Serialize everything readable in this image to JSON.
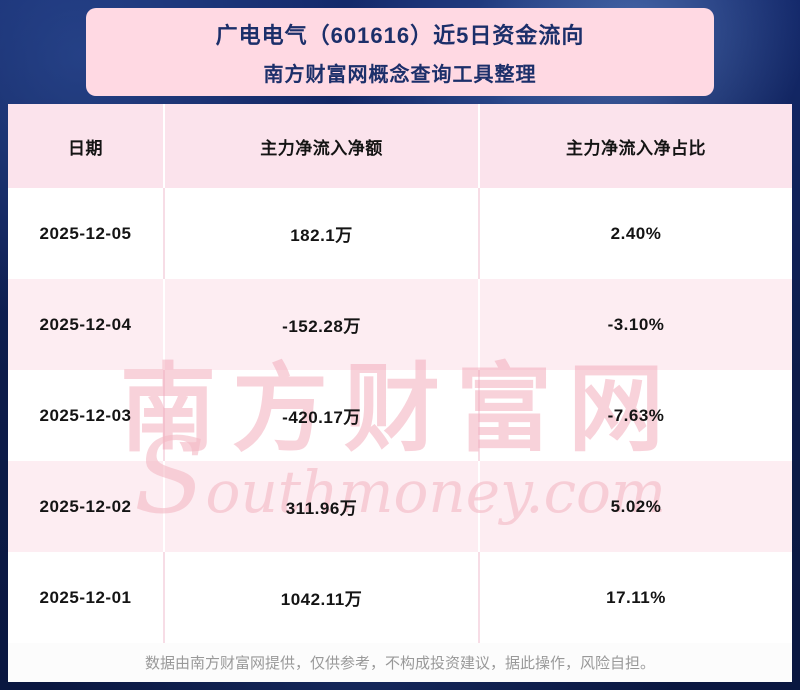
{
  "chart_data": {
    "type": "table",
    "title": "广电电气（601616）近5日资金流向",
    "subtitle": "南方财富网概念查询工具整理",
    "columns": [
      "日期",
      "主力净流入净额",
      "主力净流入净占比"
    ],
    "rows": [
      [
        "2025-12-05",
        "182.1万",
        "2.40%"
      ],
      [
        "2025-12-04",
        "-152.28万",
        "-3.10%"
      ],
      [
        "2025-12-03",
        "-420.17万",
        "-7.63%"
      ],
      [
        "2025-12-02",
        "311.96万",
        "5.02%"
      ],
      [
        "2025-12-01",
        "1042.11万",
        "17.11%"
      ]
    ],
    "amounts_wan": [
      182.1,
      -152.28,
      -420.17,
      311.96,
      1042.11
    ],
    "ratios_pct": [
      2.4,
      -3.1,
      -7.63,
      5.02,
      17.11
    ]
  },
  "watermark": {
    "cn": "南方财富网",
    "en": "Southmoney.com"
  },
  "footer": {
    "disclaimer": "数据由南方财富网提供，仅供参考，不构成投资建议，据此操作，风险自担。"
  },
  "colors": {
    "background_navy": "#0d1c4a",
    "banner_pink": "#ffd9e3",
    "title_navy": "#1c2f6a",
    "header_pink": "#fbe3ec",
    "row_pink": "#fdedf2",
    "row_white": "#ffffff",
    "text_dark": "#141414",
    "footer_text": "#999999",
    "watermark_pink": "#f1a6b6"
  }
}
